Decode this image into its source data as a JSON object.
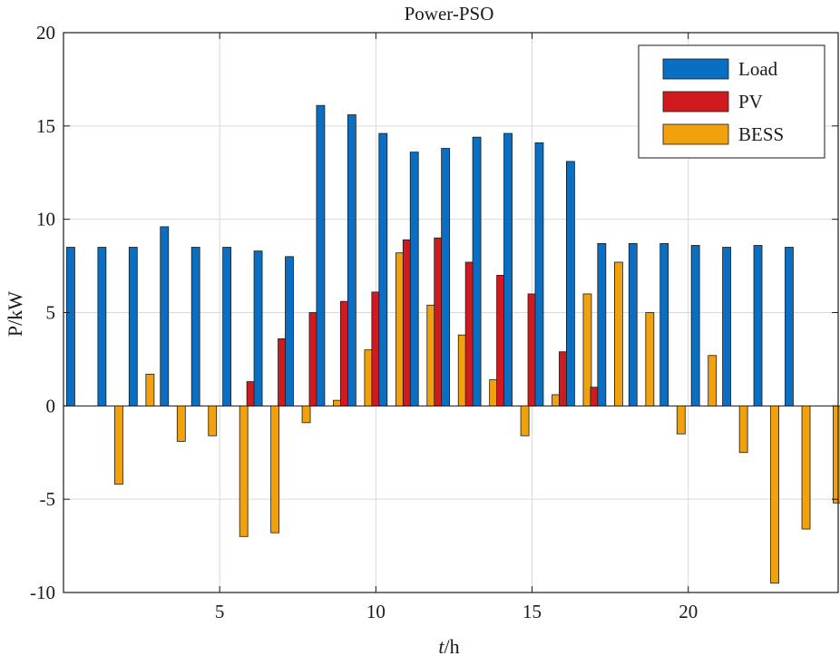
{
  "chart_data": {
    "type": "bar",
    "title": "Power-PSO",
    "xlabel_italic": "t",
    "xlabel_unit": "/h",
    "ylabel": "P/kW",
    "xlim": [
      0,
      24.8
    ],
    "ylim": [
      -10,
      20
    ],
    "x_ticks": [
      5,
      10,
      15,
      20
    ],
    "y_ticks": [
      -10,
      -5,
      0,
      5,
      10,
      15,
      20
    ],
    "grid": true,
    "legend_position": "top-right",
    "categories": [
      1,
      2,
      3,
      4,
      5,
      6,
      7,
      8,
      9,
      10,
      11,
      12,
      13,
      14,
      15,
      16,
      17,
      18,
      19,
      20,
      21,
      22,
      23,
      24
    ],
    "series": [
      {
        "name": "Load",
        "color": "#0a6fc2",
        "values": [
          8.5,
          8.5,
          8.5,
          9.6,
          8.5,
          8.5,
          8.3,
          8.0,
          16.1,
          15.6,
          14.6,
          13.6,
          13.8,
          14.4,
          14.6,
          14.1,
          13.1,
          8.7,
          8.7,
          8.7,
          8.6,
          8.5,
          8.6,
          8.5
        ]
      },
      {
        "name": "PV",
        "color": "#d11a1f",
        "values": [
          0,
          0,
          0,
          0,
          0,
          1.3,
          3.6,
          5.0,
          5.6,
          6.1,
          8.9,
          9.0,
          7.7,
          7.0,
          6.0,
          2.9,
          1.0,
          0,
          0,
          0,
          0,
          0,
          0,
          0
        ]
      },
      {
        "name": "BESS",
        "color": "#f0a10c",
        "values": [
          -4.2,
          1.7,
          -1.9,
          -1.6,
          -7.0,
          -6.8,
          -0.9,
          0.3,
          3.0,
          8.2,
          5.4,
          3.8,
          1.4,
          -1.6,
          0.6,
          6.0,
          7.7,
          5.0,
          -1.5,
          2.7,
          -2.5,
          -9.5,
          -6.6,
          -5.2
        ]
      }
    ]
  }
}
